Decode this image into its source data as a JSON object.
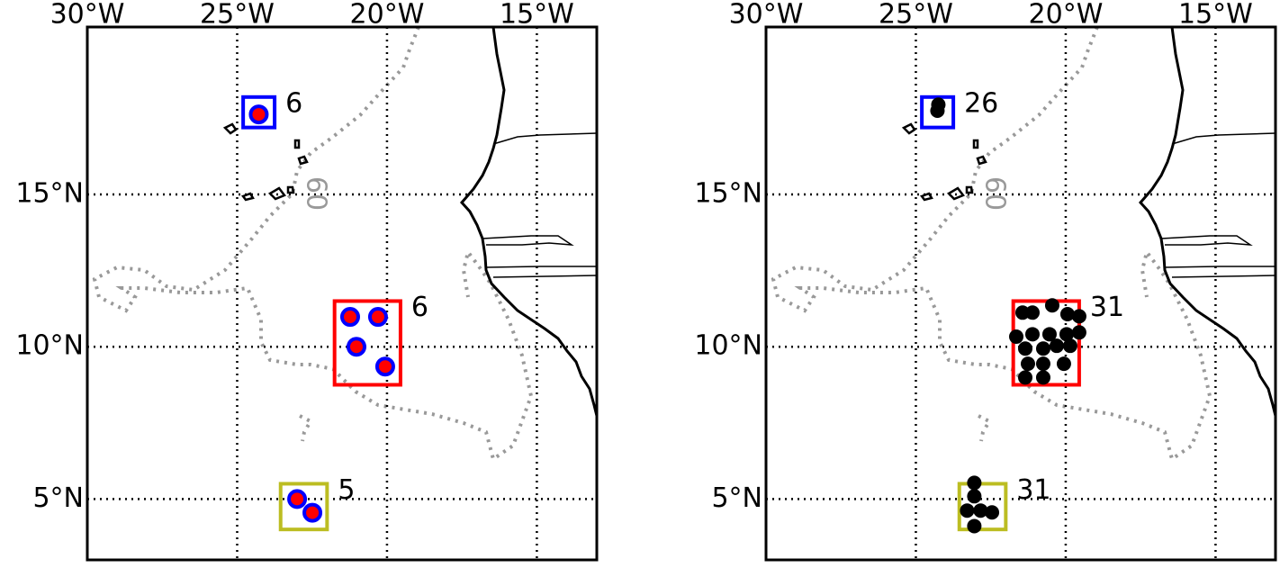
{
  "panels": [
    {
      "lonlim": [
        -30,
        -13
      ],
      "latlim": [
        3,
        20.5
      ],
      "lon_ticks": [
        {
          "value": -30,
          "label": "30°W"
        },
        {
          "value": -25,
          "label": "25°W"
        },
        {
          "value": -20,
          "label": "20°W"
        },
        {
          "value": -15,
          "label": "15°W"
        }
      ],
      "lat_ticks": [
        {
          "value": 5,
          "label": "5°N"
        },
        {
          "value": 10,
          "label": "10°N"
        },
        {
          "value": 15,
          "label": "15°N"
        }
      ],
      "contour_label": "60",
      "regions": [
        {
          "color": "#0000ff",
          "lon": [
            -24.8,
            -23.75
          ],
          "lat": [
            17.2,
            18.2
          ],
          "count": 6,
          "points": {
            "lon": [
              -24.28
            ],
            "lat": [
              17.63
            ]
          }
        },
        {
          "color": "#ff0000",
          "lon": [
            -21.75,
            -19.55
          ],
          "lat": [
            8.75,
            11.5
          ],
          "count": 6,
          "points": {
            "lon": [
              -21.23,
              -20.3,
              -21.02,
              -20.06
            ],
            "lat": [
              10.98,
              10.98,
              10.0,
              9.35
            ]
          }
        },
        {
          "color": "#bcbd22",
          "lon": [
            -23.55,
            -22.0
          ],
          "lat": [
            4.0,
            5.5
          ],
          "count": 5,
          "points": {
            "lon": [
              -23.0,
              -22.49
            ],
            "lat": [
              5.0,
              4.55
            ]
          }
        }
      ]
    },
    {
      "lonlim": [
        -30,
        -13
      ],
      "latlim": [
        3,
        20.5
      ],
      "lon_ticks": [
        {
          "value": -30,
          "label": "30°W"
        },
        {
          "value": -25,
          "label": "25°W"
        },
        {
          "value": -20,
          "label": "20°W"
        },
        {
          "value": -15,
          "label": "15°W"
        }
      ],
      "lat_ticks": [
        {
          "value": 5,
          "label": "5°N"
        },
        {
          "value": 10,
          "label": "10°N"
        },
        {
          "value": 15,
          "label": "15°N"
        }
      ],
      "contour_label": "60",
      "regions": [
        {
          "color": "#0000ff",
          "lon": [
            -24.8,
            -23.75
          ],
          "lat": [
            17.2,
            18.2
          ],
          "count": 26,
          "points": {
            "lon": [
              -24.25,
              -24.28
            ],
            "lat": [
              17.95,
              17.75
            ]
          }
        },
        {
          "color": "#ff0000",
          "lon": [
            -21.75,
            -19.55
          ],
          "lat": [
            8.75,
            11.5
          ],
          "count": 31,
          "points": {
            "lon": [
              -21.44,
              -21.11,
              -20.45,
              -19.94,
              -19.55,
              -21.65,
              -21.11,
              -20.54,
              -19.97,
              -19.55,
              -21.35,
              -20.75,
              -20.3,
              -19.85,
              -21.26,
              -20.75,
              -20.06,
              -21.35,
              -20.75
            ],
            "lat": [
              11.12,
              11.12,
              11.36,
              11.07,
              11.0,
              10.33,
              10.41,
              10.41,
              10.41,
              10.47,
              9.94,
              9.94,
              10.03,
              10.03,
              9.44,
              9.44,
              9.44,
              8.99,
              8.99
            ]
          }
        },
        {
          "color": "#bcbd22",
          "lon": [
            -23.55,
            -22.0
          ],
          "lat": [
            4.0,
            5.5
          ],
          "count": 31,
          "points": {
            "lon": [
              -23.05,
              -23.05,
              -23.29,
              -22.84,
              -22.46,
              -23.05
            ],
            "lat": [
              5.53,
              5.09,
              4.62,
              4.62,
              4.56,
              4.11
            ]
          }
        }
      ]
    }
  ]
}
